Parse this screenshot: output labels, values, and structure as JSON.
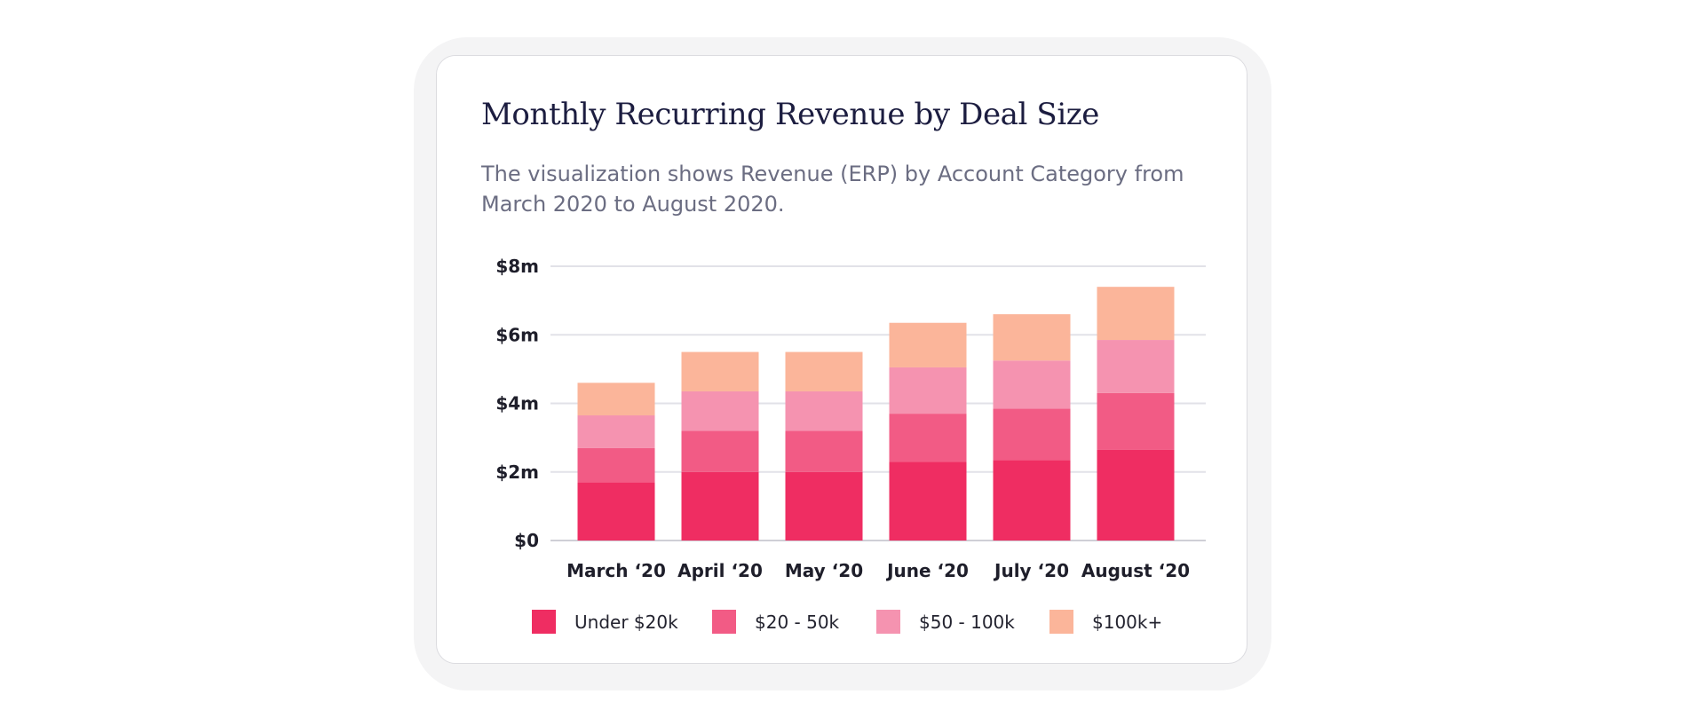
{
  "card": {
    "title": "Monthly Recurring Revenue by Deal Size",
    "subtitle": "The visualization shows Revenue (ERP) by Account Category from March 2020 to August 2020."
  },
  "chart_data": {
    "type": "bar",
    "stacked": true,
    "title": "Monthly Recurring Revenue by Deal Size",
    "xlabel": "",
    "ylabel": "",
    "ylim": [
      0,
      8
    ],
    "yticks": [
      0,
      2,
      4,
      6,
      8
    ],
    "ytick_labels": [
      "$0",
      "$2m",
      "$4m",
      "$6m",
      "$8m"
    ],
    "grid": true,
    "legend_position": "bottom",
    "categories": [
      "March ‘20",
      "April ‘20",
      "May ‘20",
      "June ‘20",
      "July ‘20",
      "August ‘20"
    ],
    "series": [
      {
        "name": "Under $20k",
        "color": "#ef2d62",
        "values": [
          1.7,
          2.0,
          2.0,
          2.3,
          2.35,
          2.65
        ]
      },
      {
        "name": "$20 - 50k",
        "color": "#f25b85",
        "values": [
          1.0,
          1.2,
          1.2,
          1.4,
          1.5,
          1.65
        ]
      },
      {
        "name": "$50 - 100k",
        "color": "#f593b0",
        "values": [
          0.95,
          1.15,
          1.15,
          1.35,
          1.4,
          1.55
        ]
      },
      {
        "name": "$100k+",
        "color": "#fbb59a",
        "values": [
          0.95,
          1.15,
          1.15,
          1.3,
          1.35,
          1.55
        ]
      }
    ]
  }
}
